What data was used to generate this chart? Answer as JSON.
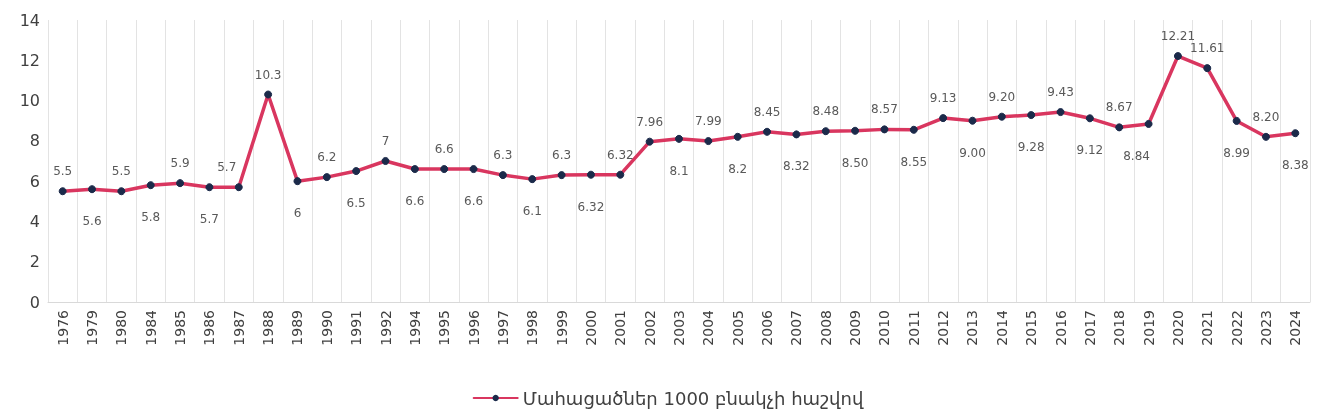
{
  "chart_data": {
    "type": "line",
    "categories": [
      "1976",
      "1979",
      "1980",
      "1984",
      "1985",
      "1986",
      "1987",
      "1988",
      "1989",
      "1990",
      "1991",
      "1992",
      "1994",
      "1995",
      "1996",
      "1997",
      "1998",
      "1999",
      "2000",
      "2001",
      "2002",
      "2003",
      "2004",
      "2005",
      "2006",
      "2007",
      "2008",
      "2009",
      "2010",
      "2011",
      "2012",
      "2013",
      "2014",
      "2015",
      "2016",
      "2017",
      "2018",
      "2019",
      "2020",
      "2021",
      "2022",
      "2023",
      "2024"
    ],
    "series": [
      {
        "name": "Մահացածներ 1000 բնակչի հաշվով",
        "color": "#d9365f",
        "values": [
          5.5,
          5.6,
          5.5,
          5.8,
          5.9,
          5.7,
          5.7,
          10.3,
          6,
          6.2,
          6.5,
          7,
          6.6,
          6.6,
          6.6,
          6.3,
          6.1,
          6.3,
          6.32,
          6.32,
          7.96,
          8.1,
          7.99,
          8.2,
          8.45,
          8.32,
          8.48,
          8.5,
          8.57,
          8.55,
          9.13,
          9.0,
          9.2,
          9.28,
          9.43,
          9.12,
          8.67,
          8.84,
          12.21,
          11.61,
          8.99,
          8.2,
          8.38
        ],
        "value_labels": [
          "5.5",
          "5.6",
          "5.5",
          "5.8",
          "5.9",
          "5.7",
          "5.7",
          "10.3",
          "6",
          "6.2",
          "6.5",
          "7",
          "6.6",
          "6.6",
          "6.6",
          "6.3",
          "6.1",
          "6.3",
          "6.32",
          "6.32",
          "7.96",
          "8.1",
          "7.99",
          "8.2",
          "8.45",
          "8.32",
          "8.48",
          "8.50",
          "8.57",
          "8.55",
          "9.13",
          "9.00",
          "9.20",
          "9.28",
          "9.43",
          "9.12",
          "8.67",
          "8.84",
          "12.21",
          "11.61",
          "8.99",
          "8.20",
          "8.38"
        ]
      }
    ],
    "ylim": [
      0,
      14
    ],
    "yticks": [
      0,
      2,
      4,
      6,
      8,
      10,
      12,
      14
    ],
    "grid": "x",
    "legend": "bottom",
    "marker": "circle",
    "line_style": "solid"
  }
}
